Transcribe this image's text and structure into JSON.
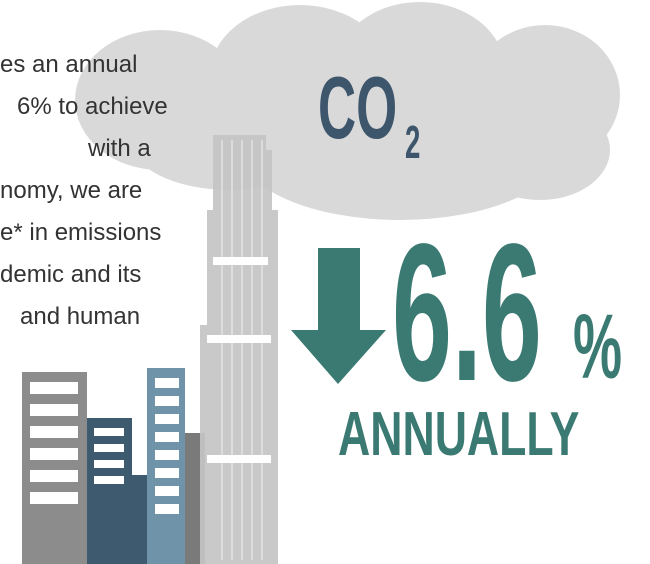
{
  "paragraph": {
    "lines": [
      "es an annual",
      "6% to achieve",
      "with a",
      "nomy, we are",
      "e* in emissions",
      "demic and its",
      "and human"
    ]
  },
  "cloud": {
    "label": "CO",
    "subscript": "2"
  },
  "stat": {
    "value": "6.6",
    "unit": "%",
    "caption": "ANNUALLY"
  }
}
